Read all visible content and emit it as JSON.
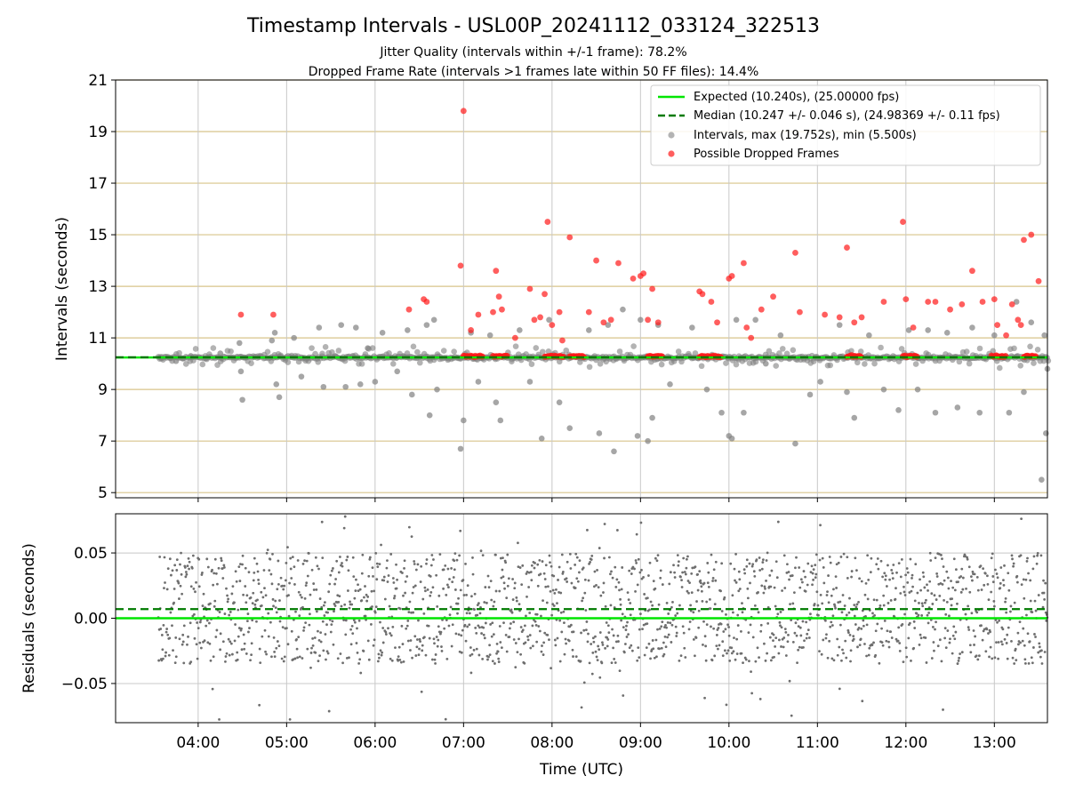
{
  "figure": {
    "title": "Timestamp Intervals - USL00P_20241112_033124_322513",
    "subtitle_line1": "Jitter Quality (intervals within +/-1 frame): 78.2%",
    "subtitle_line2": "Dropped Frame Rate (intervals >1 frames late within 50 FF files): 14.4%"
  },
  "colors": {
    "expected": "#00e600",
    "median": "#007a00",
    "intervals": "#808080",
    "dropped": "#ff1a1a",
    "hgrid_top": "#d8c48a",
    "vgrid": "#c8c8c8",
    "residuals": "#6e6e6e"
  },
  "chart_data": [
    {
      "type": "scatter",
      "panel": "top",
      "ylabel": "Intervals (seconds)",
      "xlabel": "",
      "ylim": [
        4.8,
        21
      ],
      "xlim": [
        "03:04",
        "13:36"
      ],
      "yticks": [
        5,
        7,
        9,
        11,
        13,
        15,
        17,
        19,
        21
      ],
      "ytick_labels": [
        "5",
        "7",
        "9",
        "11",
        "13",
        "15",
        "17",
        "19",
        "21"
      ],
      "grid": true,
      "legend_position": "top-right",
      "legend": [
        "Expected (10.240s), (25.00000 fps)",
        "Median (10.247 +/- 0.046 s), (24.98369 +/- 0.11 fps)",
        "Intervals, max (19.752s), min (5.500s)",
        "Possible Dropped Frames"
      ],
      "expected_value": 10.24,
      "median_value": 10.247,
      "intervals_max": 19.752,
      "intervals_min": 5.5,
      "interval_samples": [
        [
          "03:35",
          10.2
        ],
        [
          "03:45",
          10.1
        ],
        [
          "03:55",
          10.3
        ],
        [
          "04:05",
          10.2
        ],
        [
          "04:15",
          10.4
        ],
        [
          "04:28",
          10.8
        ],
        [
          "04:29",
          9.7
        ],
        [
          "04:30",
          8.6
        ],
        [
          "04:50",
          10.9
        ],
        [
          "04:52",
          11.2
        ],
        [
          "04:53",
          9.2
        ],
        [
          "04:55",
          8.7
        ],
        [
          "05:05",
          11.0
        ],
        [
          "05:10",
          9.5
        ],
        [
          "05:22",
          11.4
        ],
        [
          "05:25",
          9.1
        ],
        [
          "05:37",
          11.5
        ],
        [
          "05:40",
          9.1
        ],
        [
          "05:47",
          11.4
        ],
        [
          "05:50",
          9.2
        ],
        [
          "05:55",
          10.6
        ],
        [
          "06:00",
          9.3
        ],
        [
          "06:05",
          11.2
        ],
        [
          "06:15",
          9.7
        ],
        [
          "06:22",
          11.3
        ],
        [
          "06:25",
          8.8
        ],
        [
          "06:35",
          11.5
        ],
        [
          "06:37",
          8.0
        ],
        [
          "06:40",
          11.7
        ],
        [
          "06:42",
          9.0
        ],
        [
          "06:58",
          6.7
        ],
        [
          "07:00",
          7.8
        ],
        [
          "07:05",
          11.2
        ],
        [
          "07:10",
          9.3
        ],
        [
          "07:18",
          11.1
        ],
        [
          "07:22",
          8.5
        ],
        [
          "07:25",
          7.8
        ],
        [
          "07:38",
          11.3
        ],
        [
          "07:45",
          9.3
        ],
        [
          "07:53",
          7.1
        ],
        [
          "07:58",
          11.7
        ],
        [
          "08:05",
          8.5
        ],
        [
          "08:12",
          7.5
        ],
        [
          "08:25",
          11.3
        ],
        [
          "08:32",
          7.3
        ],
        [
          "08:38",
          11.5
        ],
        [
          "08:42",
          6.6
        ],
        [
          "08:48",
          12.1
        ],
        [
          "08:58",
          7.2
        ],
        [
          "09:00",
          11.7
        ],
        [
          "09:05",
          7.0
        ],
        [
          "09:08",
          7.9
        ],
        [
          "09:12",
          11.5
        ],
        [
          "09:20",
          9.2
        ],
        [
          "09:35",
          11.4
        ],
        [
          "09:45",
          9.0
        ],
        [
          "09:55",
          8.1
        ],
        [
          "10:00",
          7.2
        ],
        [
          "10:02",
          7.1
        ],
        [
          "10:05",
          11.7
        ],
        [
          "10:10",
          8.1
        ],
        [
          "10:18",
          11.7
        ],
        [
          "10:25",
          10.0
        ],
        [
          "10:35",
          11.1
        ],
        [
          "10:45",
          6.9
        ],
        [
          "10:55",
          8.8
        ],
        [
          "11:02",
          9.3
        ],
        [
          "11:15",
          11.5
        ],
        [
          "11:20",
          8.9
        ],
        [
          "11:25",
          7.9
        ],
        [
          "11:35",
          11.1
        ],
        [
          "11:45",
          9.0
        ],
        [
          "11:55",
          8.2
        ],
        [
          "12:02",
          11.3
        ],
        [
          "12:08",
          9.0
        ],
        [
          "12:15",
          11.3
        ],
        [
          "12:20",
          8.1
        ],
        [
          "12:28",
          11.2
        ],
        [
          "12:35",
          8.3
        ],
        [
          "12:45",
          11.4
        ],
        [
          "12:50",
          8.1
        ],
        [
          "13:00",
          11.1
        ],
        [
          "13:10",
          8.1
        ],
        [
          "13:15",
          12.4
        ],
        [
          "13:20",
          8.9
        ],
        [
          "13:25",
          11.6
        ],
        [
          "13:32",
          5.5
        ],
        [
          "13:34",
          11.1
        ],
        [
          "13:35",
          7.3
        ],
        [
          "13:36",
          9.8
        ]
      ],
      "dropped_samples": [
        [
          "04:29",
          11.9
        ],
        [
          "04:51",
          11.9
        ],
        [
          "06:23",
          12.1
        ],
        [
          "06:33",
          12.5
        ],
        [
          "06:35",
          12.4
        ],
        [
          "06:58",
          13.8
        ],
        [
          "07:00",
          19.8
        ],
        [
          "07:05",
          11.3
        ],
        [
          "07:10",
          11.9
        ],
        [
          "07:20",
          12.0
        ],
        [
          "07:22",
          13.6
        ],
        [
          "07:24",
          12.6
        ],
        [
          "07:26",
          12.1
        ],
        [
          "07:35",
          11.0
        ],
        [
          "07:45",
          12.9
        ],
        [
          "07:48",
          11.7
        ],
        [
          "07:52",
          11.8
        ],
        [
          "07:55",
          12.7
        ],
        [
          "07:57",
          15.5
        ],
        [
          "08:00",
          11.5
        ],
        [
          "08:05",
          12.0
        ],
        [
          "08:07",
          10.9
        ],
        [
          "08:12",
          14.9
        ],
        [
          "08:25",
          12.0
        ],
        [
          "08:30",
          14.0
        ],
        [
          "08:35",
          11.6
        ],
        [
          "08:40",
          11.7
        ],
        [
          "08:45",
          13.9
        ],
        [
          "08:55",
          13.3
        ],
        [
          "09:00",
          13.4
        ],
        [
          "09:02",
          13.5
        ],
        [
          "09:05",
          11.7
        ],
        [
          "09:08",
          12.9
        ],
        [
          "09:12",
          11.6
        ],
        [
          "09:40",
          12.8
        ],
        [
          "09:42",
          12.7
        ],
        [
          "09:48",
          12.4
        ],
        [
          "09:52",
          11.6
        ],
        [
          "10:00",
          13.3
        ],
        [
          "10:02",
          13.4
        ],
        [
          "10:10",
          13.9
        ],
        [
          "10:12",
          11.4
        ],
        [
          "10:15",
          11.0
        ],
        [
          "10:22",
          12.1
        ],
        [
          "10:30",
          12.6
        ],
        [
          "10:45",
          14.3
        ],
        [
          "10:48",
          12.0
        ],
        [
          "11:05",
          11.9
        ],
        [
          "11:15",
          11.8
        ],
        [
          "11:20",
          14.5
        ],
        [
          "11:25",
          11.6
        ],
        [
          "11:30",
          11.8
        ],
        [
          "11:45",
          12.4
        ],
        [
          "11:58",
          15.5
        ],
        [
          "12:00",
          12.5
        ],
        [
          "12:05",
          11.4
        ],
        [
          "12:15",
          12.4
        ],
        [
          "12:20",
          12.4
        ],
        [
          "12:30",
          12.1
        ],
        [
          "12:38",
          12.3
        ],
        [
          "12:45",
          13.6
        ],
        [
          "12:52",
          12.4
        ],
        [
          "13:00",
          12.5
        ],
        [
          "13:02",
          11.5
        ],
        [
          "13:08",
          11.1
        ],
        [
          "13:12",
          12.3
        ],
        [
          "13:16",
          11.7
        ],
        [
          "13:18",
          11.5
        ],
        [
          "13:20",
          14.8
        ],
        [
          "13:25",
          15.0
        ],
        [
          "13:30",
          13.2
        ]
      ],
      "dropped_clusters": [
        [
          "07:00",
          "07:13"
        ],
        [
          "07:20",
          "07:30"
        ],
        [
          "07:55",
          "08:08"
        ],
        [
          "08:12",
          "08:22"
        ],
        [
          "09:05",
          "09:15"
        ],
        [
          "09:40",
          "09:55"
        ],
        [
          "11:20",
          "11:30"
        ],
        [
          "11:58",
          "12:08"
        ],
        [
          "12:58",
          "13:08"
        ],
        [
          "13:20",
          "13:28"
        ]
      ]
    },
    {
      "type": "scatter",
      "panel": "bottom",
      "ylabel": "Residuals (seconds)",
      "xlabel": "Time (UTC)",
      "ylim": [
        -0.08,
        0.08
      ],
      "yticks": [
        -0.05,
        0.0,
        0.05
      ],
      "ytick_labels": [
        "−0.05",
        "0.00",
        "0.05"
      ],
      "xticks": [
        "04:00",
        "05:00",
        "06:00",
        "07:00",
        "08:00",
        "09:00",
        "10:00",
        "11:00",
        "12:00",
        "13:00"
      ],
      "xtick_labels": [
        "04:00",
        "05:00",
        "06:00",
        "07:00",
        "08:00",
        "09:00",
        "10:00",
        "11:00",
        "12:00",
        "13:00"
      ],
      "grid": true,
      "expected_value": 0.0,
      "median_value": 0.007,
      "residual_range": [
        -0.078,
        0.078
      ],
      "residual_band": [
        -0.035,
        0.05
      ]
    }
  ]
}
